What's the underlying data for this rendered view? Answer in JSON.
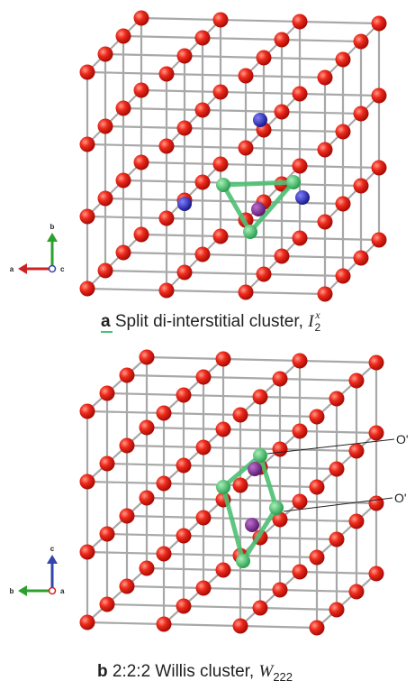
{
  "panels": [
    {
      "label": "a",
      "caption": "Split di-interstitial cluster,",
      "symbol": {
        "base": "I",
        "sub": "2",
        "sup": "x"
      },
      "axes": {
        "up": "b",
        "left": "a",
        "center": "c"
      }
    },
    {
      "label": "b",
      "caption": "2:2:2 Willis cluster,",
      "symbol": {
        "base": "W",
        "sub": "222"
      },
      "axes": {
        "up": "c",
        "left": "b",
        "center": "a"
      },
      "annotations": [
        "O'",
        "O'"
      ]
    }
  ]
}
